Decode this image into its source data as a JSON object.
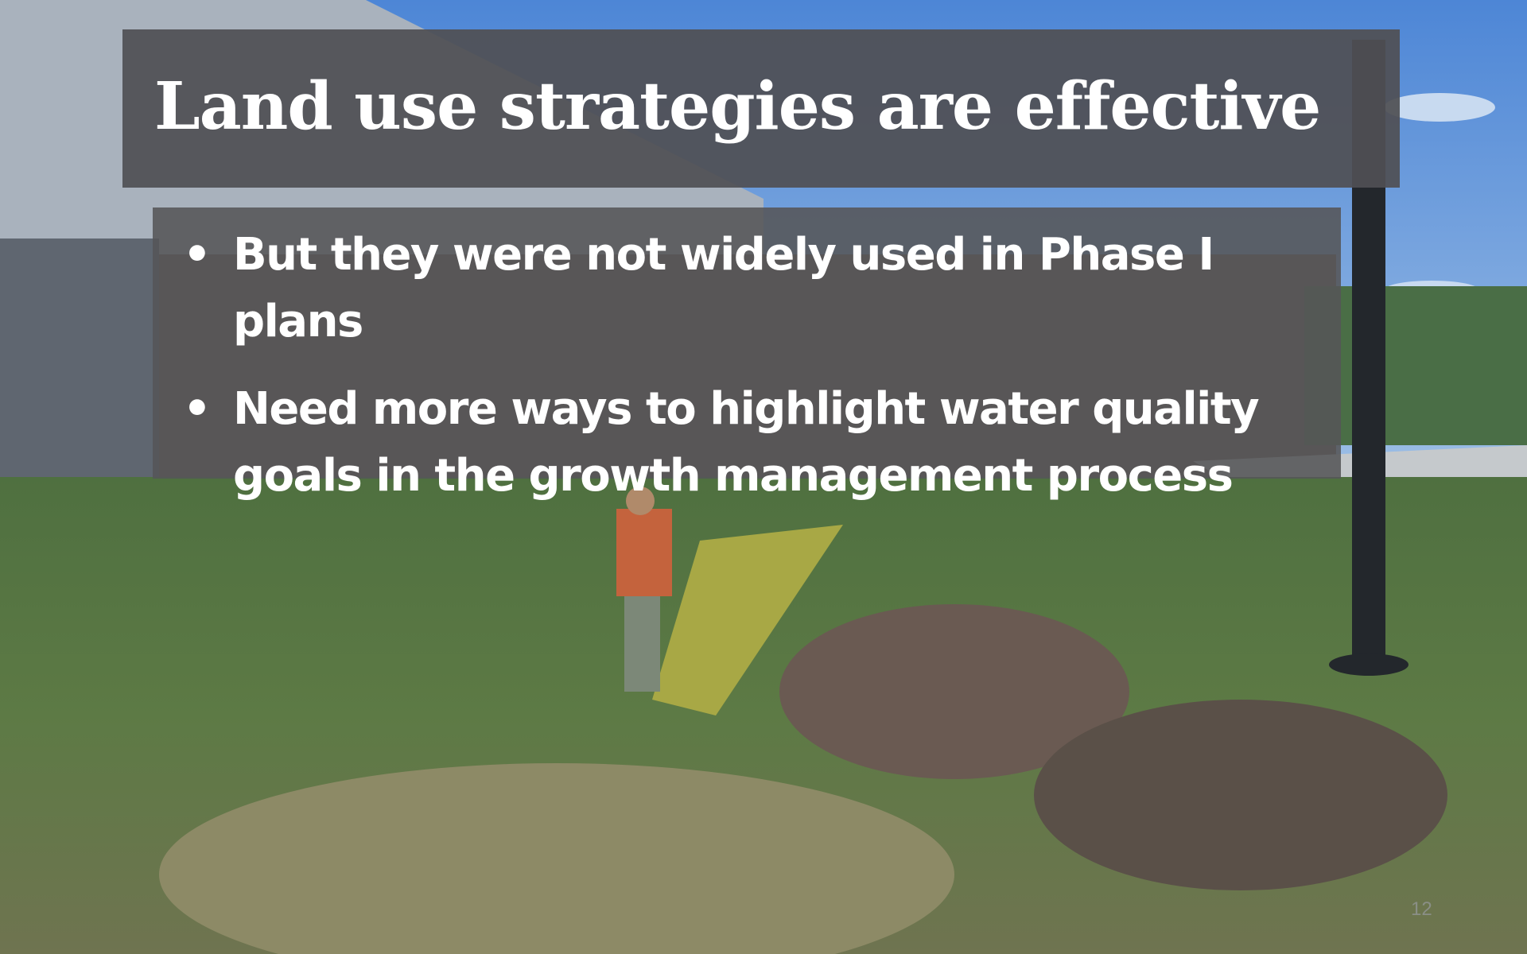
{
  "slide": {
    "title": "Land use strategies are effective",
    "bullets": [
      "But they were not widely used in Phase I plans",
      "Need more ways to highlight water quality goals in the growth management process"
    ],
    "page_number": "12"
  }
}
